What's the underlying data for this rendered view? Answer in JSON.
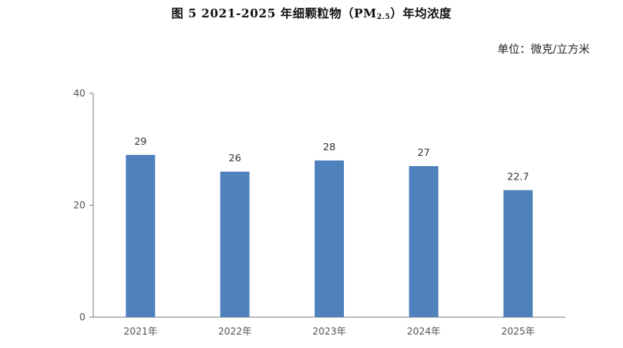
{
  "chart_data": {
    "type": "bar",
    "title_prefix": "图 5 2021-2025 年细颗粒物（PM",
    "title_sub": "2.5",
    "title_suffix": "）年均浓度",
    "unit": "单位：微克/立方米",
    "categories": [
      "2021年",
      "2022年",
      "2023年",
      "2024年",
      "2025年"
    ],
    "values": [
      29,
      26,
      28,
      27,
      22.7
    ],
    "data_labels": [
      "29",
      "26",
      "28",
      "27",
      "22.7"
    ],
    "ylim": [
      0,
      40
    ],
    "yticks": [
      0,
      20,
      40
    ],
    "bar_color": "#4f81bd",
    "grid": false,
    "legend": "none"
  }
}
